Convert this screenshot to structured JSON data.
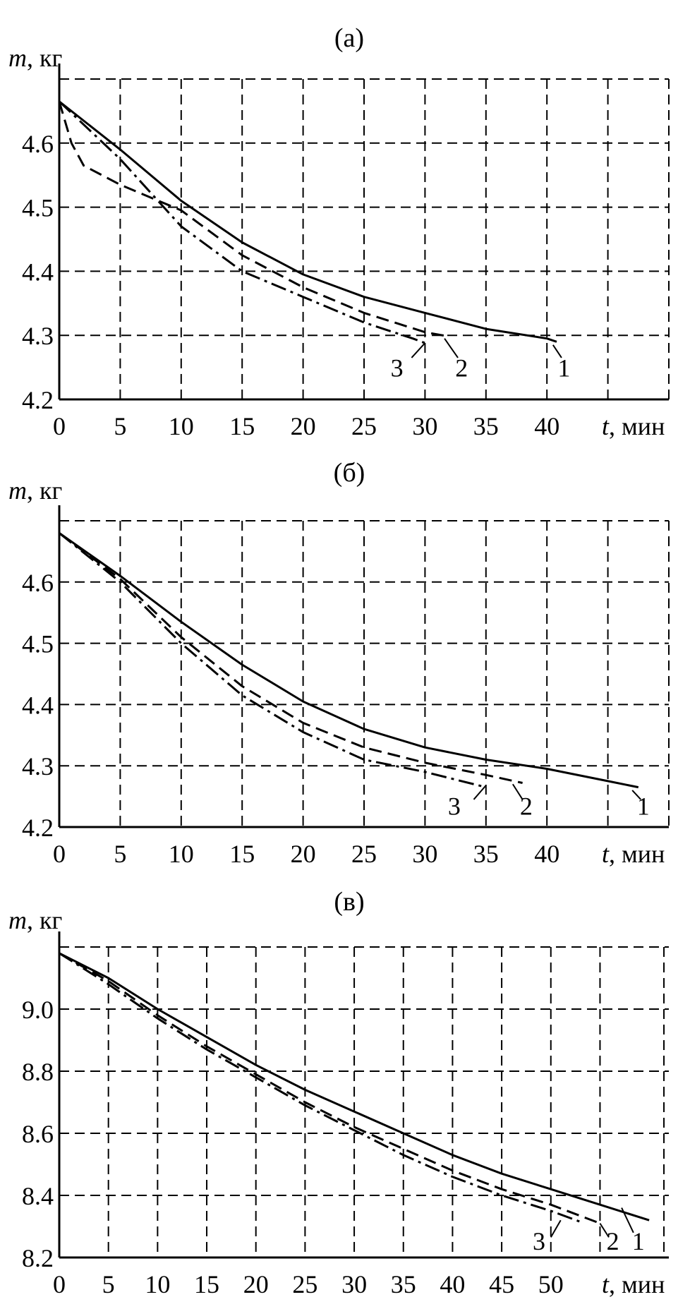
{
  "chart_data": [
    {
      "type": "line",
      "title": "(а)",
      "xlabel_var": "t",
      "xlabel_unit": ", мин",
      "ylabel_var": "m",
      "ylabel_unit": ", кг",
      "xlim": [
        0,
        50
      ],
      "ylim": [
        4.2,
        4.7
      ],
      "x_ticks": [
        0,
        5,
        10,
        15,
        20,
        25,
        30,
        35,
        40
      ],
      "x_tick_labels": [
        "0",
        "5",
        "10",
        "15",
        "20",
        "25",
        "30",
        "35",
        "40"
      ],
      "x_grid": [
        5,
        10,
        15,
        20,
        25,
        30,
        35,
        40,
        45,
        50
      ],
      "y_ticks": [
        4.2,
        4.3,
        4.4,
        4.5,
        4.6
      ],
      "y_tick_labels": [
        "4.2",
        "4.3",
        "4.4",
        "4.5",
        "4.6"
      ],
      "y_grid": [
        4.3,
        4.4,
        4.5,
        4.6,
        4.7
      ],
      "grid": true,
      "series": [
        {
          "name": "1",
          "style": "solid",
          "x": [
            0,
            5,
            10,
            15,
            20,
            25,
            30,
            35,
            40,
            40.8
          ],
          "y": [
            4.665,
            4.59,
            4.51,
            4.445,
            4.395,
            4.36,
            4.335,
            4.31,
            4.295,
            4.29
          ],
          "label_at": [
            41.4,
            4.25
          ],
          "leader": [
            40.5,
            4.285,
            41.2,
            4.265
          ]
        },
        {
          "name": "2",
          "style": "dashed",
          "x": [
            0,
            1,
            2,
            5,
            10,
            15,
            20,
            25,
            30,
            32
          ],
          "y": [
            4.665,
            4.6,
            4.565,
            4.535,
            4.495,
            4.425,
            4.375,
            4.335,
            4.305,
            4.298
          ],
          "label_at": [
            33.0,
            4.25
          ],
          "leader": [
            31.6,
            4.295,
            32.7,
            4.265
          ]
        },
        {
          "name": "3",
          "style": "dashdot",
          "x": [
            0,
            5,
            10,
            15,
            20,
            25,
            29,
            30
          ],
          "y": [
            4.665,
            4.575,
            4.47,
            4.4,
            4.36,
            4.32,
            4.295,
            4.288
          ],
          "label_at": [
            27.7,
            4.25
          ],
          "leader": [
            30.0,
            4.288,
            28.9,
            4.265
          ]
        }
      ]
    },
    {
      "type": "line",
      "title": "(б)",
      "xlabel_var": "t",
      "xlabel_unit": ", мин",
      "ylabel_var": "m",
      "ylabel_unit": ", кг",
      "xlim": [
        0,
        50
      ],
      "ylim": [
        4.2,
        4.7
      ],
      "x_ticks": [
        0,
        5,
        10,
        15,
        20,
        25,
        30,
        35,
        40
      ],
      "x_tick_labels": [
        "0",
        "5",
        "10",
        "15",
        "20",
        "25",
        "30",
        "35",
        "40"
      ],
      "x_grid": [
        5,
        10,
        15,
        20,
        25,
        30,
        35,
        40,
        45,
        50
      ],
      "y_ticks": [
        4.2,
        4.3,
        4.4,
        4.5,
        4.6
      ],
      "y_tick_labels": [
        "4.2",
        "4.3",
        "4.4",
        "4.5",
        "4.6"
      ],
      "y_grid": [
        4.3,
        4.4,
        4.5,
        4.6,
        4.7
      ],
      "grid": true,
      "series": [
        {
          "name": "1",
          "style": "solid",
          "x": [
            0,
            5,
            10,
            15,
            20,
            25,
            30,
            35,
            40,
            45,
            47.5
          ],
          "y": [
            4.68,
            4.61,
            4.535,
            4.465,
            4.405,
            4.36,
            4.33,
            4.31,
            4.295,
            4.275,
            4.265
          ],
          "label_at": [
            47.9,
            4.235
          ],
          "leader": [
            47.0,
            4.26,
            47.7,
            4.245
          ]
        },
        {
          "name": "2",
          "style": "dashed",
          "x": [
            0,
            5,
            10,
            15,
            20,
            25,
            30,
            35,
            38
          ],
          "y": [
            4.68,
            4.605,
            4.51,
            4.43,
            4.37,
            4.33,
            4.305,
            4.285,
            4.272
          ],
          "label_at": [
            38.3,
            4.235
          ],
          "leader": [
            37.2,
            4.27,
            38.0,
            4.245
          ]
        },
        {
          "name": "3",
          "style": "dashdot",
          "x": [
            0,
            5,
            10,
            15,
            20,
            25,
            30,
            35
          ],
          "y": [
            4.68,
            4.6,
            4.5,
            4.415,
            4.355,
            4.31,
            4.29,
            4.265
          ],
          "label_at": [
            32.4,
            4.235
          ],
          "leader": [
            35.0,
            4.268,
            34.0,
            4.245
          ]
        }
      ]
    },
    {
      "type": "line",
      "title": "(в)",
      "xlabel_var": "t",
      "xlabel_unit": ", мин",
      "ylabel_var": "m",
      "ylabel_unit": ", кг",
      "xlim": [
        0,
        62
      ],
      "ylim": [
        8.2,
        9.2
      ],
      "x_ticks": [
        0,
        5,
        10,
        15,
        20,
        25,
        30,
        35,
        40,
        45,
        50
      ],
      "x_tick_labels": [
        "0",
        "5",
        "10",
        "15",
        "20",
        "25",
        "30",
        "35",
        "40",
        "45",
        "50"
      ],
      "x_grid": [
        5,
        10,
        15,
        20,
        25,
        30,
        35,
        40,
        45,
        50,
        55,
        61.5
      ],
      "y_ticks": [
        8.2,
        8.4,
        8.6,
        8.8,
        9.0
      ],
      "y_tick_labels": [
        "8.2",
        "8.4",
        "8.6",
        "8.8",
        "9.0"
      ],
      "y_grid": [
        8.4,
        8.6,
        8.8,
        9.0,
        9.2
      ],
      "grid": true,
      "series": [
        {
          "name": "1",
          "style": "solid",
          "x": [
            0,
            5,
            10,
            15,
            20,
            25,
            30,
            35,
            40,
            45,
            50,
            55,
            60
          ],
          "y": [
            9.18,
            9.1,
            9.0,
            8.91,
            8.82,
            8.74,
            8.67,
            8.6,
            8.53,
            8.47,
            8.42,
            8.37,
            8.32
          ],
          "label_at": [
            58.9,
            8.255
          ],
          "leader": [
            57.2,
            8.36,
            58.4,
            8.28
          ]
        },
        {
          "name": "2",
          "style": "dashed",
          "x": [
            0,
            5,
            10,
            15,
            20,
            25,
            30,
            35,
            40,
            45,
            50,
            55
          ],
          "y": [
            9.18,
            9.09,
            8.98,
            8.88,
            8.79,
            8.7,
            8.62,
            8.55,
            8.48,
            8.42,
            8.37,
            8.31
          ],
          "label_at": [
            56.3,
            8.255
          ],
          "leader": [
            55.0,
            8.31,
            55.9,
            8.265
          ]
        },
        {
          "name": "3",
          "style": "dashdot",
          "x": [
            0,
            5,
            10,
            15,
            20,
            25,
            30,
            35,
            40,
            45,
            50,
            53
          ],
          "y": [
            9.18,
            9.08,
            8.97,
            8.87,
            8.78,
            8.69,
            8.61,
            8.53,
            8.46,
            8.4,
            8.35,
            8.315
          ],
          "label_at": [
            48.8,
            8.255
          ],
          "leader": [
            51.0,
            8.32,
            50.0,
            8.265
          ]
        }
      ]
    }
  ]
}
